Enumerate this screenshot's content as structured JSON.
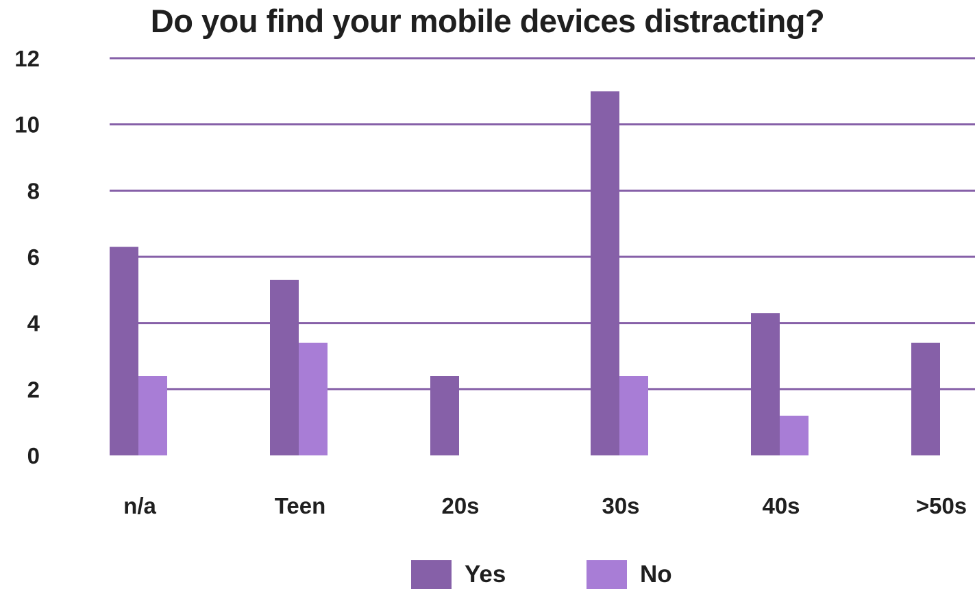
{
  "chart_data": {
    "type": "bar",
    "title": "Do you find your mobile devices distracting?",
    "categories": [
      "n/a",
      "Teen",
      "20s",
      "30s",
      "40s",
      ">50s"
    ],
    "series": [
      {
        "name": "Yes",
        "color": "#8660a8",
        "values": [
          6.3,
          5.3,
          2.4,
          11.0,
          4.3,
          3.4
        ]
      },
      {
        "name": "No",
        "color": "#a87dd6",
        "values": [
          2.4,
          3.4,
          0,
          2.4,
          1.2,
          0
        ]
      }
    ],
    "ylim": [
      0,
      12
    ],
    "yticks": [
      0,
      2,
      4,
      6,
      8,
      10,
      12
    ],
    "grid": true,
    "gridline_color": "#8660a8",
    "legend_position": "bottom-center"
  }
}
